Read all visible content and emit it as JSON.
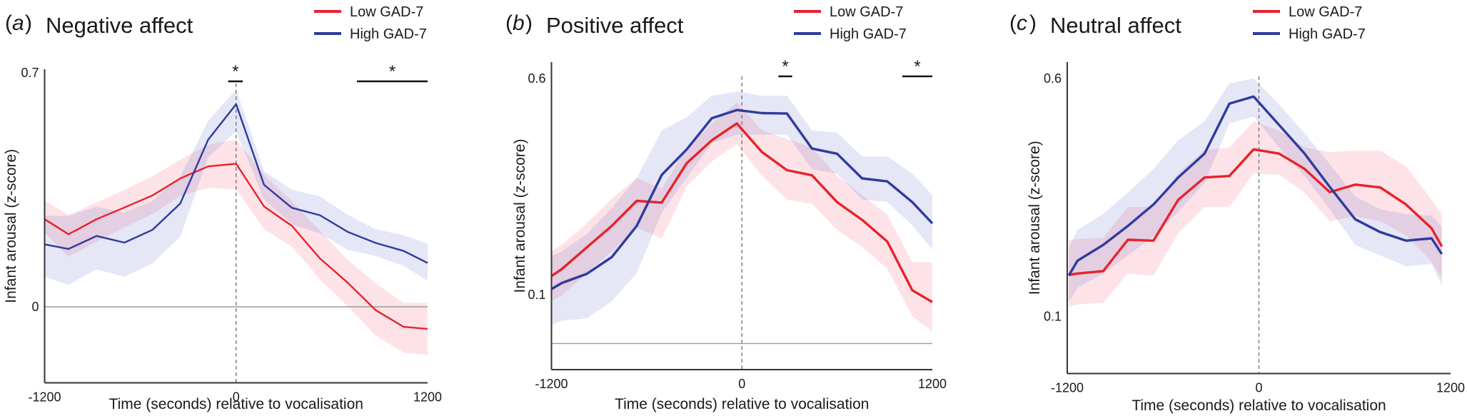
{
  "figure": {
    "legend": {
      "low_label": "Low GAD-7",
      "high_label": "High GAD-7"
    },
    "colors": {
      "low": "#e8222b",
      "high": "#2f3b9c",
      "low_band": "rgba(245, 90, 110, 0.17)",
      "high_band": "rgba(100, 105, 200, 0.17)"
    }
  },
  "chart_data": [
    {
      "type": "line",
      "panel_letter": "a",
      "title": "Negative affect",
      "xlabel": "Time (seconds) relative to vocalisation",
      "ylabel": "Infant arousal (z-score)",
      "xlim": [
        -1200,
        1200
      ],
      "ylim": [
        -0.227,
        0.7
      ],
      "x_ticks": [
        "-1200",
        "0",
        "1200"
      ],
      "y_ticks": [
        {
          "value": 0.7,
          "label": "0.7"
        },
        {
          "value": 0,
          "label": "0"
        }
      ],
      "reference_line_y": 0,
      "legend_position": "top-right",
      "x": [
        -1200,
        -1050,
        -875,
        -700,
        -525,
        -350,
        -175,
        0,
        175,
        350,
        525,
        700,
        875,
        1050,
        1200
      ],
      "series": [
        {
          "name": "Low GAD-7",
          "values": [
            0.262,
            0.217,
            0.262,
            0.297,
            0.333,
            0.384,
            0.42,
            0.428,
            0.3,
            0.242,
            0.145,
            0.072,
            -0.01,
            -0.06,
            -0.066
          ],
          "upper": [
            0.318,
            0.275,
            0.312,
            0.35,
            0.39,
            0.44,
            0.485,
            0.5,
            0.395,
            0.315,
            0.228,
            0.14,
            0.07,
            0.012,
            0.012
          ],
          "lower": [
            0.222,
            0.15,
            0.195,
            0.238,
            0.278,
            0.332,
            0.356,
            0.352,
            0.232,
            0.18,
            0.082,
            0.002,
            -0.086,
            -0.137,
            -0.144
          ]
        },
        {
          "name": "High GAD-7",
          "values": [
            0.187,
            0.173,
            0.212,
            0.192,
            0.23,
            0.309,
            0.5,
            0.606,
            0.365,
            0.296,
            0.274,
            0.224,
            0.191,
            0.167,
            0.131
          ],
          "upper": [
            0.272,
            0.272,
            0.3,
            0.282,
            0.316,
            0.39,
            0.556,
            0.65,
            0.406,
            0.35,
            0.33,
            0.275,
            0.232,
            0.214,
            0.188
          ],
          "lower": [
            0.09,
            0.066,
            0.112,
            0.09,
            0.13,
            0.21,
            0.447,
            0.525,
            0.322,
            0.246,
            0.22,
            0.17,
            0.152,
            0.122,
            0.078
          ]
        }
      ],
      "significance": [
        {
          "from": -50,
          "to": 42,
          "label": "*"
        },
        {
          "from": 757,
          "to": 1200,
          "label": "*"
        }
      ]
    },
    {
      "type": "line",
      "panel_letter": "b",
      "title": "Positive affect",
      "xlabel": "Time (seconds) relative to vocalisation",
      "ylabel": "Infant arousal (z-score)",
      "xlim": [
        -1200,
        1200
      ],
      "ylim": [
        -0.073,
        0.6
      ],
      "x_ticks": [
        "-1200",
        "0",
        "1200"
      ],
      "y_ticks": [
        {
          "value": 0.6,
          "label": "0.6"
        },
        {
          "value": 0.1,
          "label": "0.1"
        }
      ],
      "reference_line_y": -0.013,
      "legend_position": "top-right",
      "x": [
        -1200,
        -1135,
        -978,
        -820,
        -663,
        -505,
        -348,
        -190,
        -32,
        126,
        284,
        442,
        600,
        758,
        916,
        1074,
        1200
      ],
      "series": [
        {
          "name": "Low GAD-7",
          "values": [
            0.143,
            0.159,
            0.209,
            0.259,
            0.317,
            0.313,
            0.404,
            0.457,
            0.496,
            0.43,
            0.388,
            0.376,
            0.314,
            0.273,
            0.223,
            0.11,
            0.083
          ],
          "upper": [
            0.2,
            0.215,
            0.265,
            0.322,
            0.37,
            0.345,
            0.44,
            0.495,
            0.545,
            0.48,
            0.46,
            0.44,
            0.375,
            0.33,
            0.285,
            0.175,
            0.175
          ],
          "lower": [
            0.086,
            0.098,
            0.15,
            0.2,
            0.255,
            0.23,
            0.35,
            0.408,
            0.448,
            0.375,
            0.32,
            0.31,
            0.25,
            0.21,
            0.16,
            0.05,
            0.015
          ]
        },
        {
          "name": "High GAD-7",
          "values": [
            0.113,
            0.127,
            0.148,
            0.187,
            0.259,
            0.377,
            0.436,
            0.508,
            0.527,
            0.52,
            0.519,
            0.438,
            0.426,
            0.369,
            0.362,
            0.314,
            0.265
          ],
          "upper": [
            0.19,
            0.2,
            0.24,
            0.3,
            0.37,
            0.48,
            0.51,
            0.56,
            0.57,
            0.56,
            0.56,
            0.48,
            0.475,
            0.42,
            0.42,
            0.38,
            0.33
          ],
          "lower": [
            0.03,
            0.04,
            0.045,
            0.085,
            0.15,
            0.29,
            0.37,
            0.45,
            0.47,
            0.47,
            0.47,
            0.39,
            0.38,
            0.32,
            0.315,
            0.26,
            0.205
          ]
        }
      ],
      "significance": [
        {
          "from": 230,
          "to": 317,
          "label": "*"
        },
        {
          "from": 1011,
          "to": 1200,
          "label": "*"
        }
      ]
    },
    {
      "type": "line",
      "panel_letter": "c",
      "title": "Neutral affect",
      "xlabel": "Time (seconds) relative to vocalisation",
      "ylabel": "Infant arousal (z-score)",
      "xlim": [
        -1200,
        1200
      ],
      "ylim": [
        -0.015,
        0.6
      ],
      "x_ticks": [
        "-1200",
        "0",
        "1200"
      ],
      "y_ticks": [
        {
          "value": 0.6,
          "label": "0.6"
        },
        {
          "value": 0.1,
          "label": "0.1"
        }
      ],
      "reference_line_y": null,
      "legend_position": "top-right",
      "x": [
        -1190,
        -1135,
        -975,
        -820,
        -660,
        -505,
        -340,
        -185,
        -33,
        127,
        286,
        444,
        603,
        760,
        921,
        1081,
        1145
      ],
      "series": [
        {
          "name": "Low GAD-7",
          "values": [
            0.187,
            0.19,
            0.195,
            0.261,
            0.259,
            0.345,
            0.392,
            0.395,
            0.451,
            0.442,
            0.41,
            0.361,
            0.377,
            0.371,
            0.335,
            0.285,
            0.247
          ],
          "upper": [
            0.26,
            0.262,
            0.265,
            0.33,
            0.33,
            0.4,
            0.45,
            0.455,
            0.51,
            0.49,
            0.455,
            0.445,
            0.448,
            0.448,
            0.415,
            0.345,
            0.315
          ],
          "lower": [
            0.12,
            0.125,
            0.128,
            0.19,
            0.185,
            0.275,
            0.33,
            0.33,
            0.4,
            0.398,
            0.36,
            0.3,
            0.31,
            0.3,
            0.27,
            0.215,
            0.18
          ]
        },
        {
          "name": "High GAD-7",
          "values": [
            0.186,
            0.217,
            0.25,
            0.29,
            0.335,
            0.392,
            0.442,
            0.547,
            0.562,
            0.502,
            0.442,
            0.372,
            0.304,
            0.277,
            0.259,
            0.264,
            0.231
          ],
          "upper": [
            0.245,
            0.282,
            0.315,
            0.36,
            0.41,
            0.47,
            0.51,
            0.59,
            0.6,
            0.545,
            0.485,
            0.42,
            0.352,
            0.325,
            0.315,
            0.312,
            0.288
          ],
          "lower": [
            0.13,
            0.16,
            0.19,
            0.228,
            0.268,
            0.32,
            0.38,
            0.505,
            0.52,
            0.455,
            0.395,
            0.325,
            0.25,
            0.228,
            0.205,
            0.21,
            0.165
          ]
        }
      ],
      "significance": []
    }
  ]
}
